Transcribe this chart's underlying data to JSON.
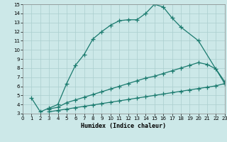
{
  "line1_x": [
    1,
    2,
    3,
    4,
    5,
    6,
    7,
    8,
    9,
    10,
    11,
    12,
    13,
    14,
    15,
    16,
    17,
    18,
    20,
    23
  ],
  "line1_y": [
    4.7,
    3.2,
    3.6,
    4.0,
    6.3,
    8.3,
    9.5,
    11.2,
    12.0,
    12.7,
    13.2,
    13.3,
    13.3,
    14.0,
    15.0,
    14.7,
    13.5,
    12.5,
    11.0,
    6.3
  ],
  "line2_x": [
    3,
    4,
    5,
    6,
    7,
    8,
    9,
    10,
    11,
    12,
    13,
    14,
    15,
    16,
    17,
    18,
    19,
    20,
    21,
    22,
    23
  ],
  "line2_y": [
    3.5,
    3.7,
    4.2,
    4.5,
    4.8,
    5.1,
    5.4,
    5.7,
    6.0,
    6.3,
    6.6,
    6.9,
    7.1,
    7.4,
    7.7,
    8.0,
    8.3,
    8.6,
    8.4,
    7.9,
    6.5
  ],
  "line3_x": [
    3,
    4,
    5,
    6,
    7,
    8,
    9,
    10,
    11,
    12,
    13,
    14,
    15,
    16,
    17,
    18,
    19,
    20,
    21,
    22,
    23
  ],
  "line3_y": [
    3.2,
    3.35,
    3.5,
    3.65,
    3.8,
    3.95,
    4.1,
    4.25,
    4.4,
    4.55,
    4.7,
    4.85,
    5.0,
    5.15,
    5.3,
    5.45,
    5.6,
    5.75,
    5.9,
    6.05,
    6.3
  ],
  "line_color": "#1a7a6e",
  "bg_color": "#cce8e8",
  "grid_color": "#aacece",
  "xlabel": "Humidex (Indice chaleur)",
  "xlim": [
    0,
    23
  ],
  "ylim": [
    3,
    15
  ],
  "xticks": [
    0,
    1,
    2,
    3,
    4,
    5,
    6,
    7,
    8,
    9,
    10,
    11,
    12,
    13,
    14,
    15,
    16,
    17,
    18,
    19,
    20,
    21,
    22,
    23
  ],
  "yticks": [
    3,
    4,
    5,
    6,
    7,
    8,
    9,
    10,
    11,
    12,
    13,
    14,
    15
  ],
  "marker": "+",
  "markersize": 4,
  "linewidth": 0.9
}
